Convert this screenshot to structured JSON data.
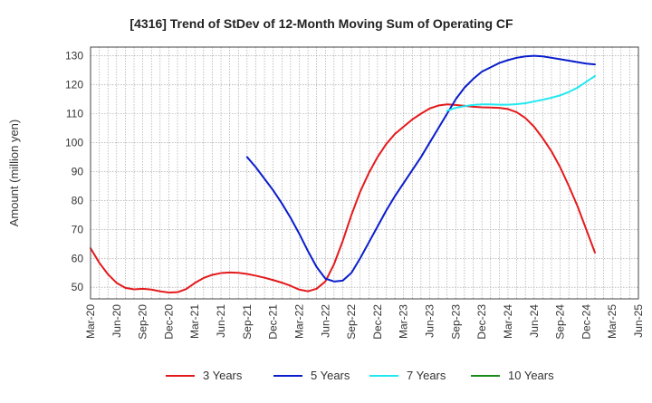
{
  "chart_data": {
    "type": "line",
    "title": "[4316]  Trend of StDev of 12-Month Moving Sum of Operating CF",
    "xlabel": "",
    "ylabel": "Amount (million yen)",
    "ylim": [
      46,
      133
    ],
    "yticks": [
      50,
      60,
      70,
      80,
      90,
      100,
      110,
      120,
      130
    ],
    "x_ticks": [
      "Mar-20",
      "Jun-20",
      "Sep-20",
      "Dec-20",
      "Mar-21",
      "Jun-21",
      "Sep-21",
      "Dec-21",
      "Mar-22",
      "Jun-22",
      "Sep-22",
      "Dec-22",
      "Mar-23",
      "Jun-23",
      "Sep-23",
      "Dec-23",
      "Mar-24",
      "Jun-24",
      "Sep-24",
      "Dec-24",
      "Mar-25",
      "Jun-25"
    ],
    "grid": true,
    "legend_position": "bottom",
    "series": [
      {
        "name": "3 Years",
        "color": "#e41a1c",
        "values": [
          63.5,
          58.5,
          54.5,
          51.5,
          49.8,
          49.3,
          49.5,
          49.2,
          48.6,
          48.2,
          48.3,
          49.4,
          51.5,
          53.2,
          54.3,
          54.9,
          55.1,
          55.0,
          54.6,
          54.0,
          53.3,
          52.5,
          51.6,
          50.5,
          49.2,
          48.6,
          49.5,
          52.0,
          58.0,
          66.0,
          75.0,
          83.0,
          89.5,
          95.0,
          99.5,
          103.0,
          105.5,
          108.0,
          110.0,
          111.8,
          112.8,
          113.2,
          113.0,
          112.7,
          112.4,
          112.2,
          112.1,
          112.0,
          111.6,
          110.5,
          108.5,
          105.5,
          101.5,
          97.0,
          91.5,
          85.0,
          78.0,
          70.0,
          62.0
        ],
        "start_index": 0
      },
      {
        "name": "5 Years",
        "color": "#0a1ecc",
        "values": [
          95.0,
          91.5,
          87.5,
          83.5,
          79.0,
          74.0,
          68.5,
          62.5,
          57.0,
          53.0,
          52.0,
          52.3,
          55.0,
          60.0,
          65.5,
          71.0,
          76.5,
          81.5,
          86.0,
          90.5,
          95.0,
          100.0,
          105.0,
          110.0,
          115.0,
          119.0,
          122.0,
          124.5,
          126.0,
          127.5,
          128.5,
          129.3,
          129.8,
          130.0,
          129.8,
          129.3,
          128.8,
          128.3,
          127.8,
          127.3,
          127.0
        ],
        "start_index": 18
      },
      {
        "name": "7 Years",
        "color": "#22e8f0",
        "values": [
          111.0,
          112.0,
          112.6,
          113.0,
          113.2,
          113.2,
          113.1,
          113.1,
          113.3,
          113.6,
          114.2,
          114.8,
          115.5,
          116.3,
          117.5,
          119.0,
          121.0,
          123.0
        ],
        "start_index": 41
      },
      {
        "name": "10 Years",
        "color": "#1a8a1a",
        "values": [],
        "start_index": 0
      }
    ]
  }
}
